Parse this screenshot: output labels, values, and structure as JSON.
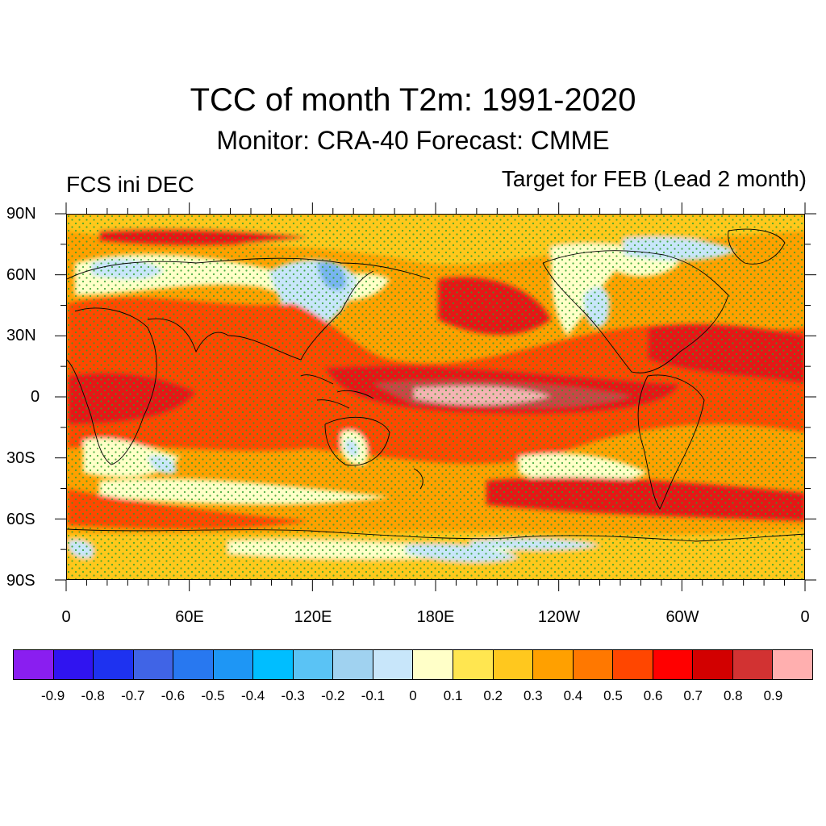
{
  "title": "TCC of month T2m: 1991-2020",
  "subtitle": "Monitor: CRA-40   Forecast: CMME",
  "left_label": "FCS ini DEC",
  "right_label": "Target for FEB (Lead 2 month)",
  "lat_labels": [
    "90N",
    "60N",
    "30N",
    "0",
    "30S",
    "60S",
    "90S"
  ],
  "lon_labels": [
    "0",
    "60E",
    "120E",
    "180E",
    "120W",
    "60W",
    "0"
  ],
  "colorbar": {
    "colors": [
      "#8a1ef0",
      "#3014f0",
      "#1e32f0",
      "#4064e6",
      "#2878f0",
      "#1e96f5",
      "#00beff",
      "#5ac3f5",
      "#a0d2f0",
      "#c8e6fa",
      "#ffffc8",
      "#ffe650",
      "#ffc81e",
      "#ffa000",
      "#ff7800",
      "#ff4600",
      "#ff0000",
      "#d20000",
      "#d23232",
      "#ffafaf"
    ],
    "labels": [
      "-0.9",
      "-0.8",
      "-0.7",
      "-0.6",
      "-0.5",
      "-0.4",
      "-0.3",
      "-0.2",
      "-0.1",
      "0",
      "0.1",
      "0.2",
      "0.3",
      "0.4",
      "0.5",
      "0.6",
      "0.7",
      "0.8",
      "0.9"
    ]
  },
  "map_colors": {
    "base": "#ffa000",
    "red": "#ff4600",
    "deep_red": "#e61414",
    "brown": "#c84646",
    "pink": "#f5b4b4",
    "yellow": "#ffc81e",
    "pale_yellow": "#ffffc8",
    "light_blue": "#c8e6fa",
    "blue": "#78b4f0",
    "land_line": "#000000",
    "stipple": "#2ca02c"
  }
}
